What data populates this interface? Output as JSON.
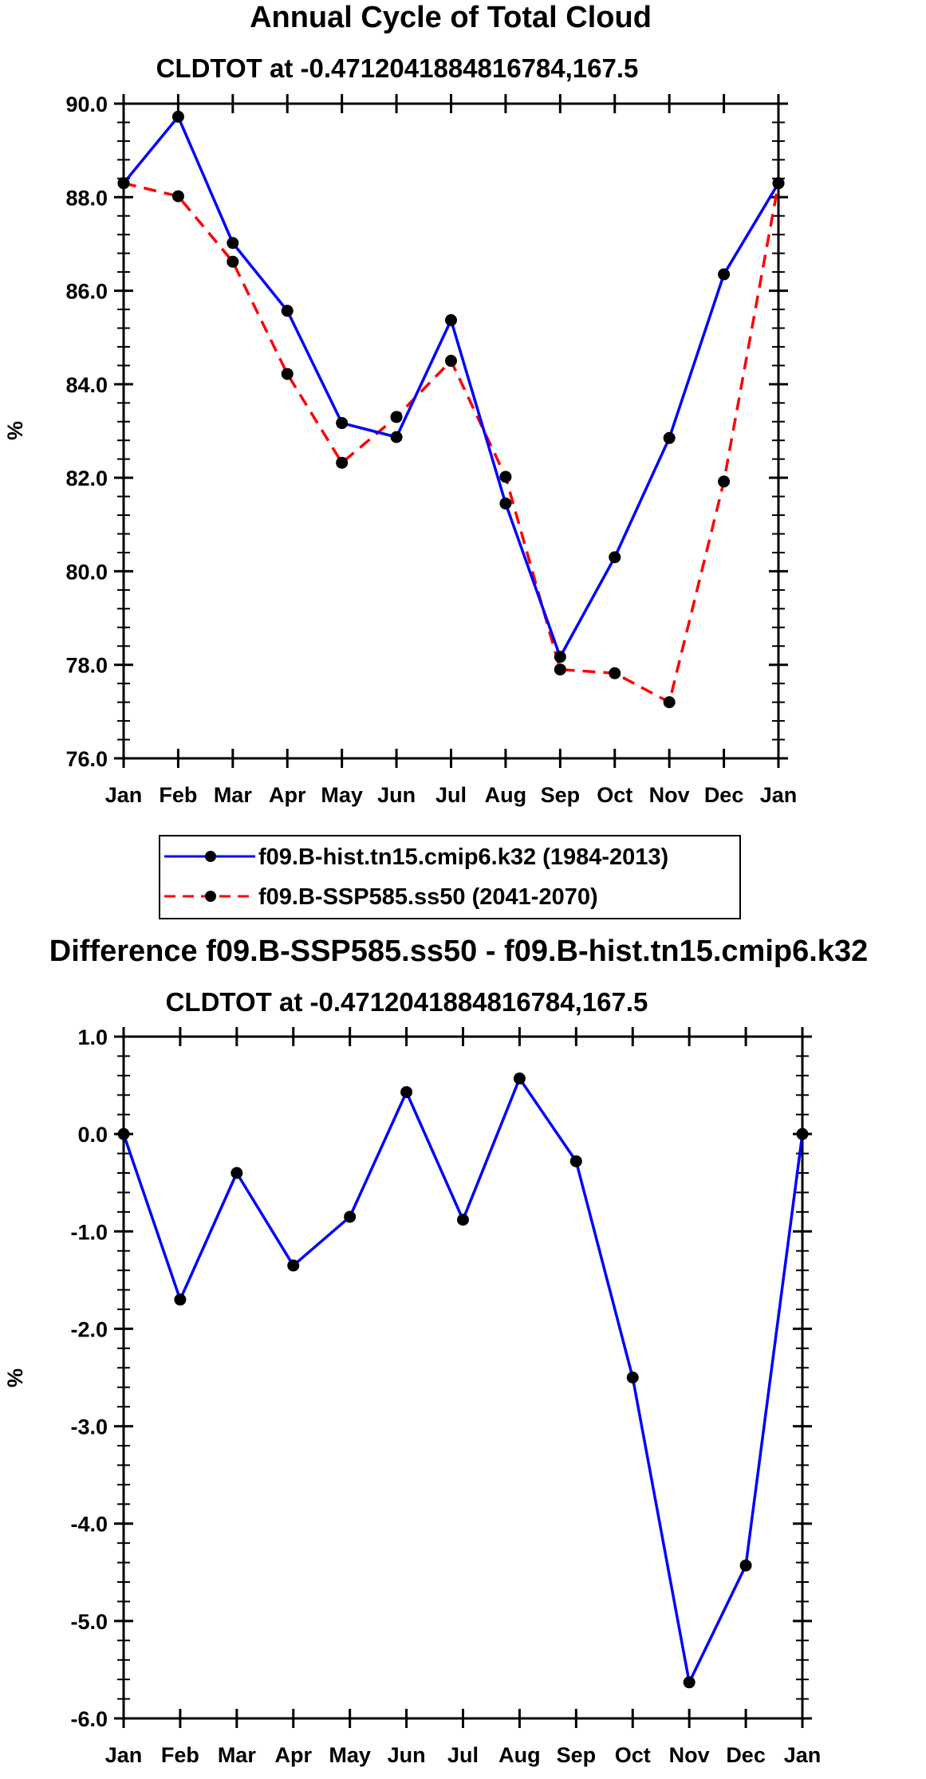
{
  "chart_data": [
    {
      "type": "line",
      "title": "Annual Cycle of Total Cloud",
      "subtitle": "CLDTOT at -0.4712041884816784,167.5",
      "ylabel": "%",
      "xlabel": "",
      "categories": [
        "Jan",
        "Feb",
        "Mar",
        "Apr",
        "May",
        "Jun",
        "Jul",
        "Aug",
        "Sep",
        "Oct",
        "Nov",
        "Dec",
        "Jan"
      ],
      "ylim": [
        76.0,
        90.0
      ],
      "yticks": [
        "76.0",
        "78.0",
        "80.0",
        "82.0",
        "84.0",
        "86.0",
        "88.0",
        "90.0"
      ],
      "legend_position": "below",
      "series": [
        {
          "name": "f09.B-hist.tn15.cmip6.k32 (1984-2013)",
          "color": "#0000ff",
          "line_style": "solid",
          "values": [
            88.3,
            89.72,
            87.02,
            85.57,
            83.17,
            82.87,
            85.37,
            81.45,
            78.17,
            80.3,
            82.85,
            86.35,
            88.3
          ]
        },
        {
          "name": "f09.B-SSP585.ss50 (2041-2070)",
          "color": "#ff0000",
          "line_style": "dashed",
          "values": [
            88.3,
            88.02,
            86.62,
            84.22,
            82.32,
            83.3,
            84.5,
            82.02,
            77.9,
            77.82,
            77.2,
            81.92,
            88.3
          ]
        }
      ]
    },
    {
      "type": "line",
      "title": "Difference f09.B-SSP585.ss50 - f09.B-hist.tn15.cmip6.k32",
      "subtitle": "CLDTOT at -0.4712041884816784,167.5",
      "ylabel": "%",
      "xlabel": "",
      "categories": [
        "Jan",
        "Feb",
        "Mar",
        "Apr",
        "May",
        "Jun",
        "Jul",
        "Aug",
        "Sep",
        "Oct",
        "Nov",
        "Dec",
        "Jan"
      ],
      "ylim": [
        -6.0,
        1.0
      ],
      "yticks": [
        "-6.0",
        "-5.0",
        "-4.0",
        "-3.0",
        "-2.0",
        "-1.0",
        "0.0",
        "1.0"
      ],
      "series": [
        {
          "name": "Difference",
          "color": "#0000ff",
          "line_style": "solid",
          "values": [
            0.0,
            -1.7,
            -0.4,
            -1.35,
            -0.85,
            0.43,
            -0.88,
            0.57,
            -0.28,
            -2.5,
            -5.63,
            -4.43,
            0.0
          ]
        }
      ]
    }
  ]
}
